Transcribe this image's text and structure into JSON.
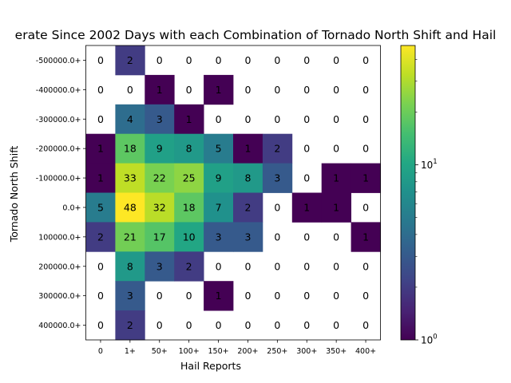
{
  "chart_data": {
    "type": "heatmap",
    "title": "erate Since 2002 Days with each Combination of Tornado North Shift and Hail",
    "xlabel": "Hail Reports",
    "ylabel": "Tornado North Shift",
    "x_categories": [
      "0",
      "1+",
      "50+",
      "100+",
      "150+",
      "200+",
      "250+",
      "300+",
      "350+",
      "400+"
    ],
    "y_categories": [
      "-500000.0+",
      "-400000.0+",
      "-300000.0+",
      "-200000.0+",
      "-100000.0+",
      "0.0+",
      "100000.0+",
      "200000.0+",
      "300000.0+",
      "400000.0+"
    ],
    "values": [
      [
        0,
        2,
        0,
        0,
        0,
        0,
        0,
        0,
        0,
        0
      ],
      [
        0,
        0,
        1,
        0,
        1,
        0,
        0,
        0,
        0,
        0
      ],
      [
        0,
        4,
        3,
        1,
        0,
        0,
        0,
        0,
        0,
        0
      ],
      [
        1,
        18,
        9,
        8,
        5,
        1,
        2,
        0,
        0,
        0
      ],
      [
        1,
        33,
        22,
        25,
        9,
        8,
        3,
        0,
        1,
        1
      ],
      [
        5,
        48,
        32,
        18,
        7,
        2,
        0,
        1,
        1,
        0
      ],
      [
        2,
        21,
        17,
        10,
        3,
        3,
        0,
        0,
        0,
        1
      ],
      [
        0,
        8,
        3,
        2,
        0,
        0,
        0,
        0,
        0,
        0
      ],
      [
        0,
        3,
        0,
        0,
        1,
        0,
        0,
        0,
        0,
        0
      ],
      [
        0,
        2,
        0,
        0,
        0,
        0,
        0,
        0,
        0,
        0
      ]
    ],
    "colorscale": "viridis",
    "color_scale_type": "log",
    "colorbar_range": [
      1,
      48
    ],
    "colorbar_ticks": [
      {
        "base": "10",
        "exp": "0",
        "value": 1
      },
      {
        "base": "10",
        "exp": "1",
        "value": 10
      }
    ],
    "zero_cells": "white"
  }
}
